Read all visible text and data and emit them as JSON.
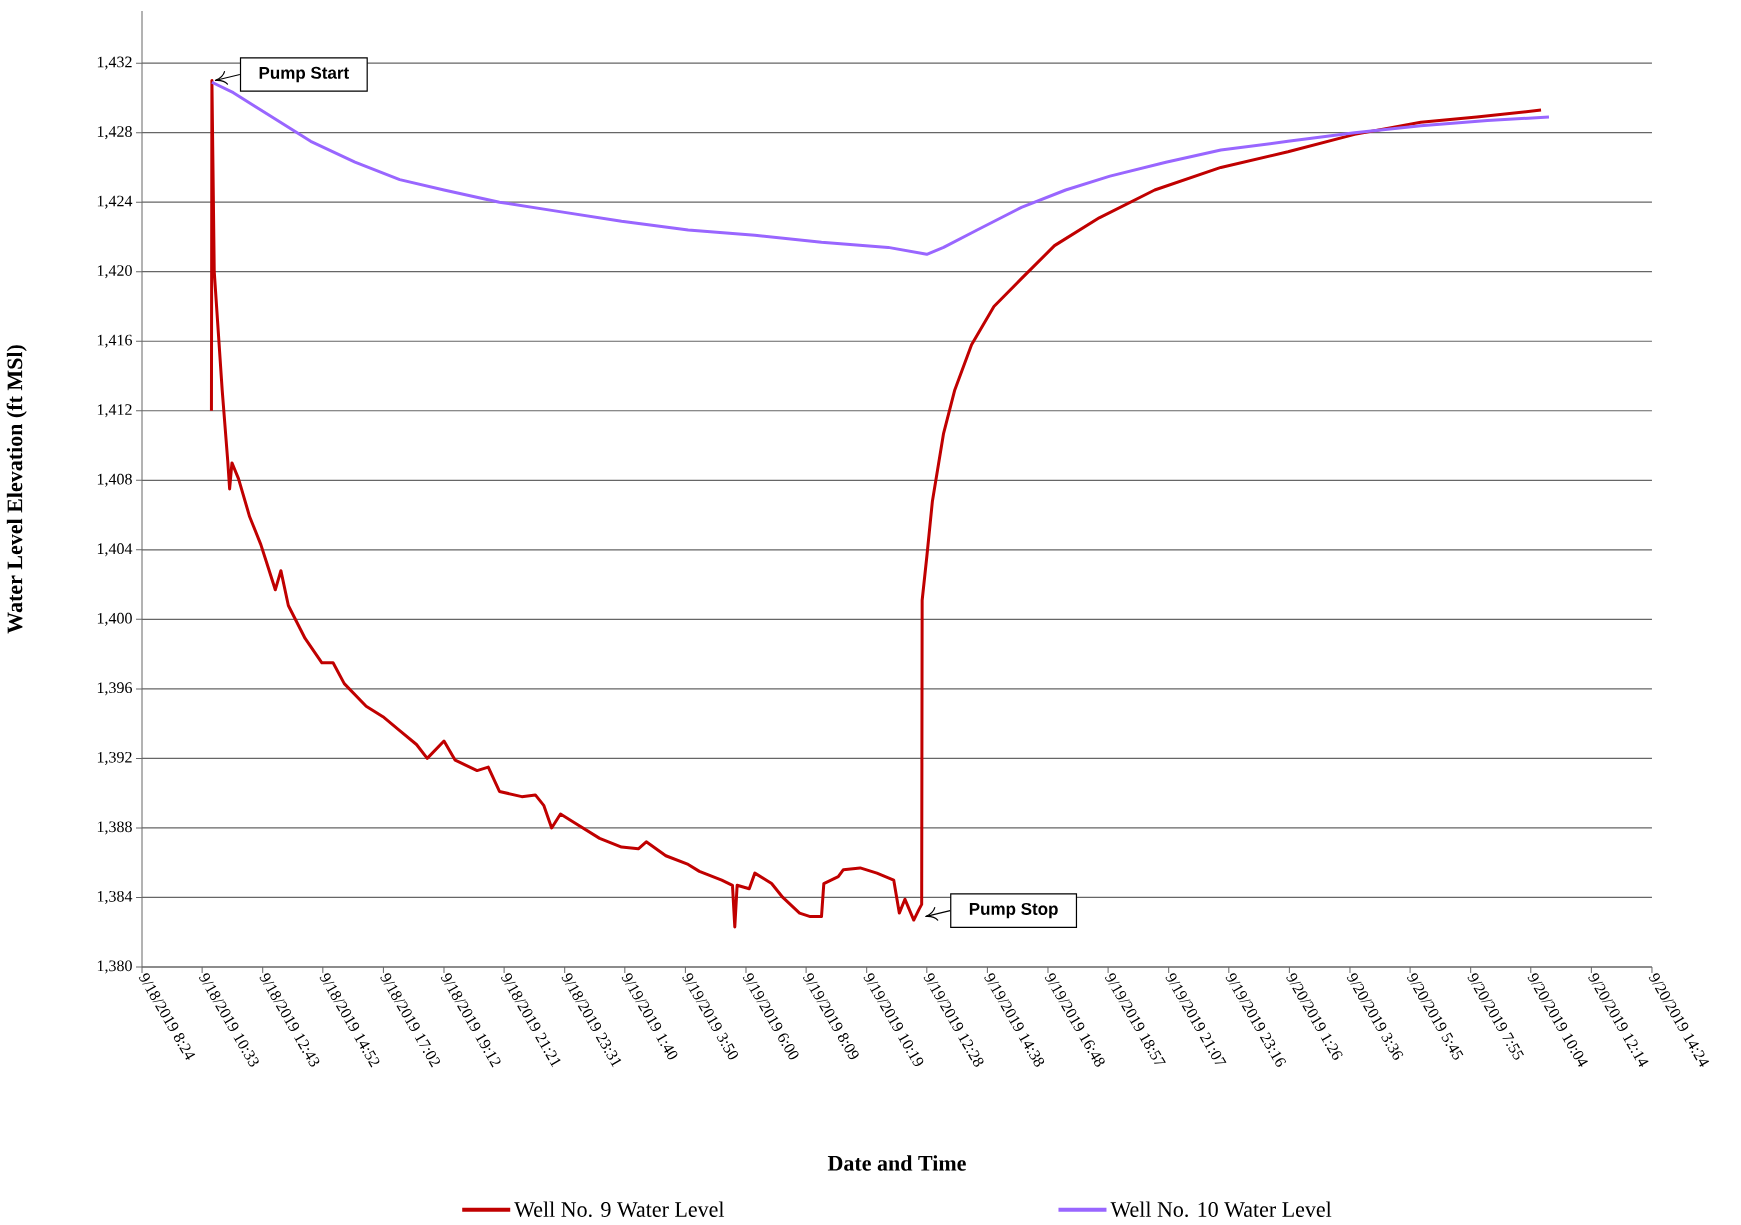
{
  "chart_data": {
    "type": "line",
    "xlabel": "Date and Time",
    "ylabel": "Water Level Elevation (ft MSl)",
    "xlim": [
      "2019-09-18T08:24",
      "2019-09-20T14:24"
    ],
    "ylim": [
      1380,
      1435
    ],
    "xticks": [
      {
        "value": "2019-09-18T08:24",
        "label": "9/18/2019 8:24"
      },
      {
        "value": "2019-09-18T10:33",
        "label": "9/18/2019 10:33"
      },
      {
        "value": "2019-09-18T12:43",
        "label": "9/18/2019 12:43"
      },
      {
        "value": "2019-09-18T14:52",
        "label": "9/18/2019 14:52"
      },
      {
        "value": "2019-09-18T17:02",
        "label": "9/18/2019 17:02"
      },
      {
        "value": "2019-09-18T19:12",
        "label": "9/18/2019 19:12"
      },
      {
        "value": "2019-09-18T21:21",
        "label": "9/18/2019 21:21"
      },
      {
        "value": "2019-09-18T23:31",
        "label": "9/18/2019 23:31"
      },
      {
        "value": "2019-09-19T01:40",
        "label": "9/19/2019 1:40"
      },
      {
        "value": "2019-09-19T03:50",
        "label": "9/19/2019 3:50"
      },
      {
        "value": "2019-09-19T06:00",
        "label": "9/19/2019 6:00"
      },
      {
        "value": "2019-09-19T08:09",
        "label": "9/19/2019 8:09"
      },
      {
        "value": "2019-09-19T10:19",
        "label": "9/19/2019 10:19"
      },
      {
        "value": "2019-09-19T12:28",
        "label": "9/19/2019 12:28"
      },
      {
        "value": "2019-09-19T14:38",
        "label": "9/19/2019 14:38"
      },
      {
        "value": "2019-09-19T16:48",
        "label": "9/19/2019 16:48"
      },
      {
        "value": "2019-09-19T18:57",
        "label": "9/19/2019 18:57"
      },
      {
        "value": "2019-09-19T21:07",
        "label": "9/19/2019 21:07"
      },
      {
        "value": "2019-09-19T23:16",
        "label": "9/19/2019 23:16"
      },
      {
        "value": "2019-09-20T01:26",
        "label": "9/20/2019 1:26"
      },
      {
        "value": "2019-09-20T03:36",
        "label": "9/20/2019 3:36"
      },
      {
        "value": "2019-09-20T05:45",
        "label": "9/20/2019 5:45"
      },
      {
        "value": "2019-09-20T07:55",
        "label": "9/20/2019 7:55"
      },
      {
        "value": "2019-09-20T10:04",
        "label": "9/20/2019 10:04"
      },
      {
        "value": "2019-09-20T12:14",
        "label": "9/20/2019 12:14"
      },
      {
        "value": "2019-09-20T14:24",
        "label": "9/20/2019 14:24"
      }
    ],
    "yticks": [
      {
        "value": 1380,
        "label": "1,380"
      },
      {
        "value": 1384,
        "label": "1,384"
      },
      {
        "value": 1388,
        "label": "1,388"
      },
      {
        "value": 1392,
        "label": "1,392"
      },
      {
        "value": 1396,
        "label": "1,396"
      },
      {
        "value": 1400,
        "label": "1,400"
      },
      {
        "value": 1404,
        "label": "1,404"
      },
      {
        "value": 1408,
        "label": "1,408"
      },
      {
        "value": 1412,
        "label": "1,412"
      },
      {
        "value": 1416,
        "label": "1,416"
      },
      {
        "value": 1420,
        "label": "1,420"
      },
      {
        "value": 1424,
        "label": "1,424"
      },
      {
        "value": 1428,
        "label": "1,428"
      },
      {
        "value": 1432,
        "label": "1,432"
      }
    ],
    "grid": "y",
    "legend": "bottom",
    "marker": "none",
    "line_style": "solid",
    "series": [
      {
        "name": "Well No. 9 Water Level",
        "color": "#c00000",
        "x": [
          "2019-09-18T10:53",
          "2019-09-18T10:54",
          "2019-09-18T10:59",
          "2019-09-18T11:16",
          "2019-09-18T11:28",
          "2019-09-18T11:32",
          "2019-09-18T11:37",
          "2019-09-18T11:51",
          "2019-09-18T12:15",
          "2019-09-18T12:39",
          "2019-09-18T12:51",
          "2019-09-18T13:10",
          "2019-09-18T13:22",
          "2019-09-18T13:38",
          "2019-09-18T14:14",
          "2019-09-18T14:50",
          "2019-09-18T15:14",
          "2019-09-18T15:38",
          "2019-09-18T16:25",
          "2019-09-18T17:01",
          "2019-09-18T17:37",
          "2019-09-18T18:13",
          "2019-09-18T18:36",
          "2019-09-18T19:12",
          "2019-09-18T19:36",
          "2019-09-18T20:23",
          "2019-09-18T20:47",
          "2019-09-18T21:11",
          "2019-09-18T21:59",
          "2019-09-18T22:28",
          "2019-09-18T22:46",
          "2019-09-18T23:03",
          "2019-09-18T23:22",
          "2019-09-18T23:58",
          "2019-09-19T00:46",
          "2019-09-19T01:33",
          "2019-09-19T02:09",
          "2019-09-19T02:26",
          "2019-09-19T03:08",
          "2019-09-19T03:56",
          "2019-09-19T04:20",
          "2019-09-19T05:08",
          "2019-09-19T05:31",
          "2019-09-19T05:36",
          "2019-09-19T05:41",
          "2019-09-19T06:07",
          "2019-09-19T06:19",
          "2019-09-19T06:55",
          "2019-09-19T07:19",
          "2019-09-19T07:55",
          "2019-09-19T08:18",
          "2019-09-19T08:42",
          "2019-09-19T08:47",
          "2019-09-19T09:18",
          "2019-09-19T09:29",
          "2019-09-19T10:05",
          "2019-09-19T10:41",
          "2019-09-19T11:17",
          "2019-09-19T11:29",
          "2019-09-19T11:41",
          "2019-09-19T12:00",
          "2019-09-19T12:11",
          "2019-09-19T12:17",
          "2019-09-19T12:18",
          "2019-09-19T12:28",
          "2019-09-19T12:40",
          "2019-09-19T13:04",
          "2019-09-19T13:28",
          "2019-09-19T14:04",
          "2019-09-19T14:52",
          "2019-09-19T15:51",
          "2019-09-19T17:02",
          "2019-09-19T18:38",
          "2019-09-19T20:37",
          "2019-09-19T22:59",
          "2019-09-20T01:23",
          "2019-09-20T03:46",
          "2019-09-20T06:08",
          "2019-09-20T08:08",
          "2019-09-20T10:26"
        ],
        "values": [
          1412,
          1431,
          1420,
          1413.2,
          1409.1,
          1407.5,
          1409,
          1408.1,
          1405.9,
          1404.3,
          1403.3,
          1401.7,
          1402.8,
          1400.8,
          1398.9,
          1397.5,
          1397.5,
          1396.3,
          1395,
          1394.4,
          1393.6,
          1392.8,
          1392,
          1393,
          1391.9,
          1391.3,
          1391.5,
          1390.1,
          1389.8,
          1389.9,
          1389.3,
          1388,
          1388.8,
          1388.2,
          1387.4,
          1386.9,
          1386.8,
          1387.2,
          1386.4,
          1385.9,
          1385.5,
          1385,
          1384.7,
          1382.3,
          1384.7,
          1384.5,
          1385.4,
          1384.8,
          1384,
          1383.1,
          1382.9,
          1382.9,
          1384.8,
          1385.2,
          1385.6,
          1385.7,
          1385.4,
          1385,
          1383.1,
          1383.9,
          1382.7,
          1383.3,
          1383.6,
          1401.1,
          1403.6,
          1406.8,
          1410.7,
          1413.2,
          1415.8,
          1418,
          1419.6,
          1421.5,
          1423.1,
          1424.7,
          1426,
          1426.9,
          1427.9,
          1428.6,
          1428.9,
          1429.3
        ]
      },
      {
        "name": "Well No. 10 Water Level",
        "color": "#9966ff",
        "x": [
          "2019-09-18T10:54",
          "2019-09-18T11:40",
          "2019-09-18T12:51",
          "2019-09-18T14:26",
          "2019-09-18T16:01",
          "2019-09-18T17:37",
          "2019-09-18T19:12",
          "2019-09-18T21:11",
          "2019-09-18T23:10",
          "2019-09-19T01:33",
          "2019-09-19T03:56",
          "2019-09-19T06:19",
          "2019-09-19T08:42",
          "2019-09-19T11:05",
          "2019-09-19T12:28",
          "2019-09-19T13:04",
          "2019-09-19T14:16",
          "2019-09-19T15:51",
          "2019-09-19T17:26",
          "2019-09-19T19:01",
          "2019-09-19T21:01",
          "2019-09-19T22:59",
          "2019-09-20T01:23",
          "2019-09-20T03:46",
          "2019-09-20T06:08",
          "2019-09-20T08:31",
          "2019-09-20T10:43"
        ],
        "values": [
          1430.9,
          1430.3,
          1429.1,
          1427.5,
          1426.3,
          1425.3,
          1424.7,
          1424,
          1423.5,
          1422.9,
          1422.4,
          1422.1,
          1421.7,
          1421.4,
          1421,
          1421.4,
          1422.4,
          1423.7,
          1424.7,
          1425.5,
          1426.3,
          1427,
          1427.5,
          1428,
          1428.4,
          1428.7,
          1428.9
        ]
      }
    ],
    "annotations": [
      {
        "text": "Pump Start",
        "x": "2019-09-18T10:54",
        "y": 1431
      },
      {
        "text": "Pump Stop",
        "x": "2019-09-19T12:18",
        "y": 1382.9
      }
    ]
  }
}
